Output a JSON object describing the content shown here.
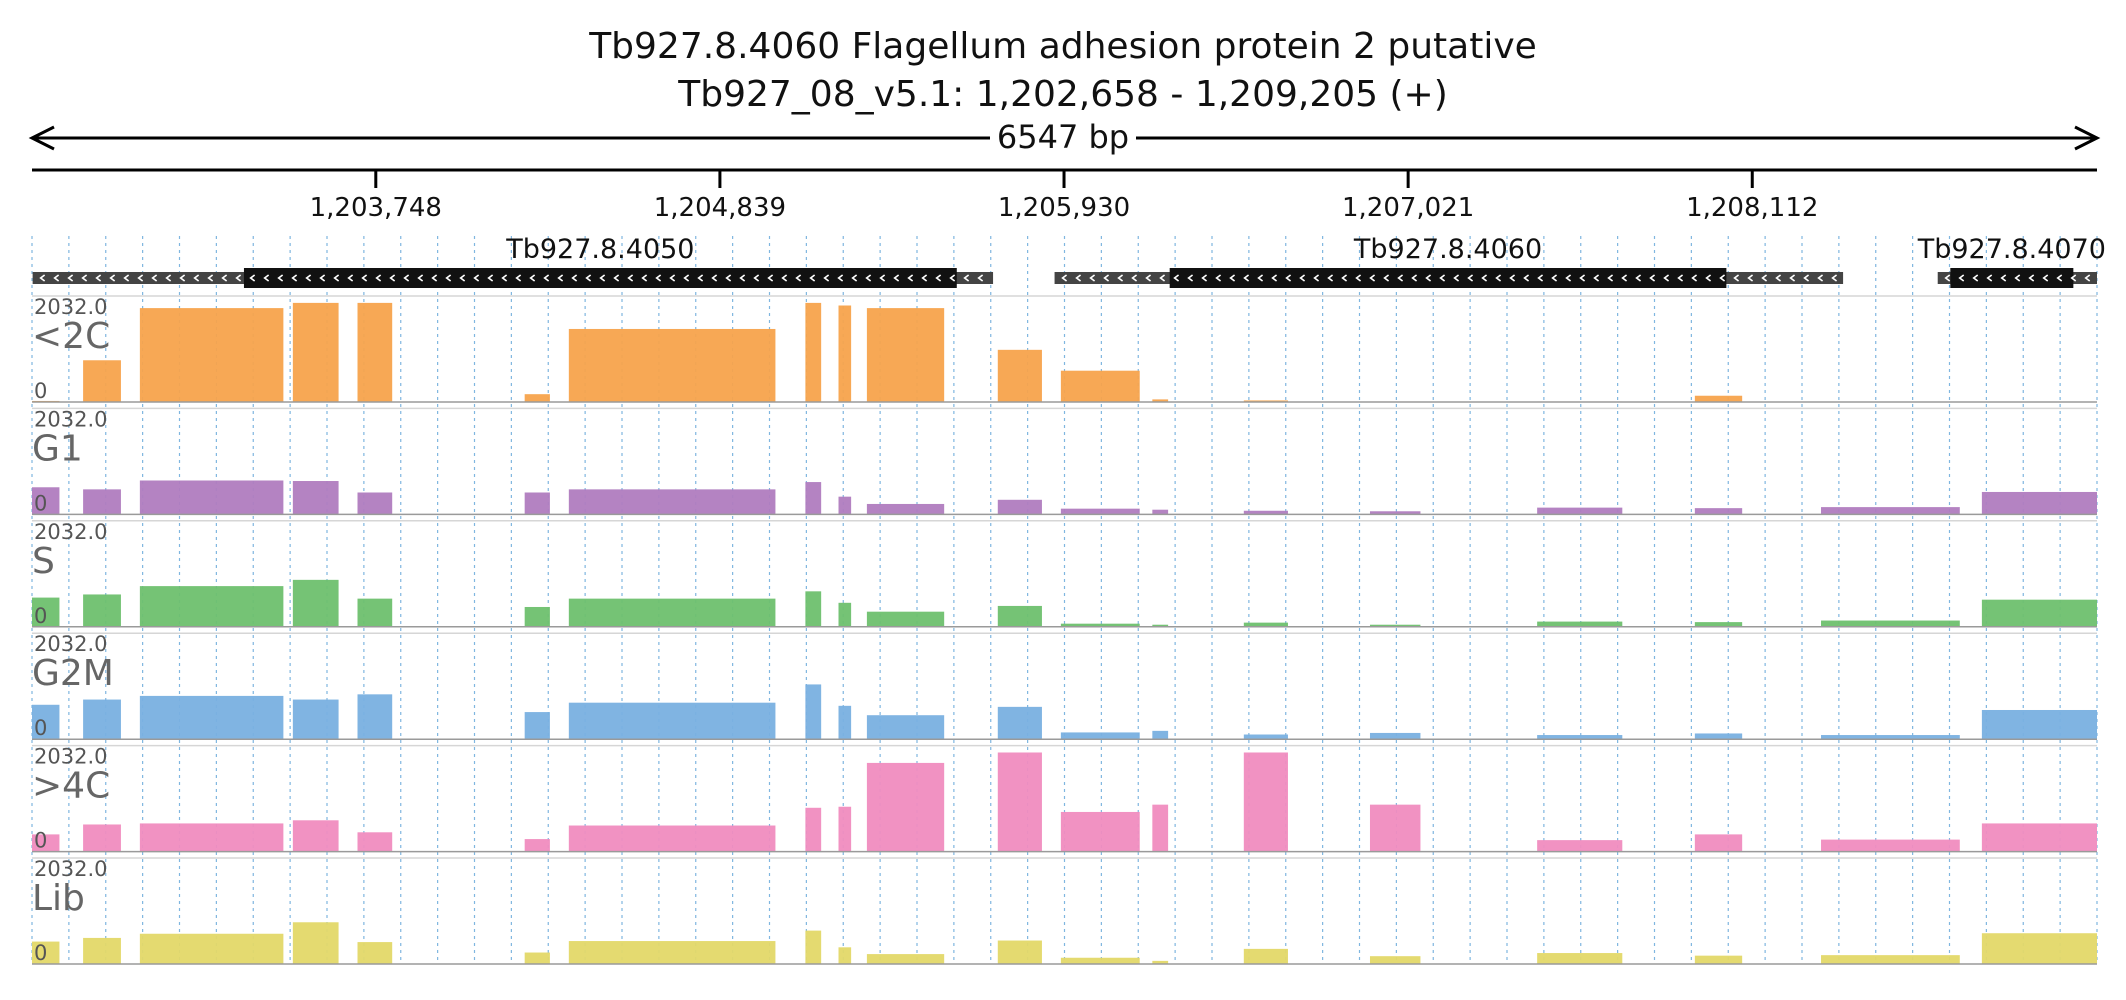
{
  "chart_data": {
    "type": "area",
    "title": "Tb927.8.4060  Flagellum adhesion protein 2  putative",
    "subtitle": "Tb927_08_v5.1: 1,202,658 - 1,209,205 (+)",
    "span_label": "6547 bp",
    "xlim": [
      1202658,
      1209205
    ],
    "ticks": [
      {
        "pos": 1203748,
        "label": "1,203,748"
      },
      {
        "pos": 1204839,
        "label": "1,204,839"
      },
      {
        "pos": 1205930,
        "label": "1,205,930"
      },
      {
        "pos": 1207021,
        "label": "1,207,021"
      },
      {
        "pos": 1208112,
        "label": "1,208,112"
      }
    ],
    "genes": [
      {
        "name": "Tb927.8.4050",
        "start": 1202660,
        "end": 1205705,
        "cds_start": 1203330,
        "cds_end": 1205590,
        "strand": "-"
      },
      {
        "name": "Tb927.8.4060",
        "start": 1205900,
        "end": 1208400,
        "cds_start": 1206265,
        "cds_end": 1208030,
        "strand": "-"
      },
      {
        "name": "Tb927.8.4070",
        "start": 1208700,
        "end": 1209205,
        "cds_start": 1208740,
        "cds_end": 1209130,
        "strand": "-"
      }
    ],
    "ylim": [
      0,
      2032.0
    ],
    "scale_max_label": "2032.0",
    "scale_min_label": "0",
    "segments": [
      [
        1202658,
        1202745
      ],
      [
        1202745,
        1202820
      ],
      [
        1202820,
        1202940
      ],
      [
        1202940,
        1203000
      ],
      [
        1203000,
        1203455
      ],
      [
        1203455,
        1203485
      ],
      [
        1203485,
        1203630
      ],
      [
        1203630,
        1203690
      ],
      [
        1203690,
        1203800
      ],
      [
        1203800,
        1204220
      ],
      [
        1204220,
        1204300
      ],
      [
        1204300,
        1204360
      ],
      [
        1204360,
        1205015
      ],
      [
        1205015,
        1205110
      ],
      [
        1205110,
        1205160
      ],
      [
        1205160,
        1205215
      ],
      [
        1205215,
        1205255
      ],
      [
        1205255,
        1205305
      ],
      [
        1205305,
        1205550
      ],
      [
        1205550,
        1205720
      ],
      [
        1205720,
        1205860
      ],
      [
        1205860,
        1205920
      ],
      [
        1205920,
        1206170
      ],
      [
        1206170,
        1206210
      ],
      [
        1206210,
        1206260
      ],
      [
        1206260,
        1206500
      ],
      [
        1206500,
        1206640
      ],
      [
        1206640,
        1206900
      ],
      [
        1206900,
        1207060
      ],
      [
        1207060,
        1207430
      ],
      [
        1207430,
        1207700
      ],
      [
        1207700,
        1207930
      ],
      [
        1207930,
        1208080
      ],
      [
        1208080,
        1208330
      ],
      [
        1208330,
        1208770
      ],
      [
        1208770,
        1208840
      ],
      [
        1208840,
        1209205
      ]
    ],
    "series": [
      {
        "name": "<2C",
        "color": "#f7a34c",
        "levels": [
          20,
          0,
          800,
          0,
          1800,
          0,
          1900,
          0,
          1900,
          0,
          150,
          0,
          1400,
          0,
          1900,
          0,
          1850,
          0,
          1800,
          0,
          1000,
          0,
          600,
          0,
          50,
          0,
          30,
          0,
          10,
          0,
          10,
          0,
          120,
          0,
          0,
          0,
          0
        ]
      },
      {
        "name": "G1",
        "color": "#b07cbf",
        "levels": [
          520,
          0,
          480,
          0,
          650,
          0,
          640,
          0,
          420,
          0,
          420,
          0,
          480,
          0,
          620,
          0,
          340,
          0,
          200,
          0,
          280,
          0,
          110,
          0,
          90,
          0,
          70,
          0,
          60,
          0,
          130,
          0,
          120,
          0,
          140,
          0,
          430
        ]
      },
      {
        "name": "S",
        "color": "#6ec06e",
        "levels": [
          560,
          0,
          620,
          0,
          780,
          0,
          900,
          0,
          540,
          0,
          380,
          0,
          540,
          0,
          680,
          0,
          460,
          0,
          290,
          0,
          400,
          0,
          60,
          0,
          40,
          0,
          80,
          0,
          40,
          0,
          100,
          0,
          90,
          0,
          120,
          0,
          520
        ]
      },
      {
        "name": "G2M",
        "color": "#79b0e0",
        "levels": [
          660,
          0,
          760,
          0,
          830,
          0,
          760,
          0,
          860,
          0,
          520,
          0,
          700,
          0,
          1050,
          0,
          640,
          0,
          460,
          0,
          620,
          0,
          130,
          0,
          160,
          0,
          90,
          0,
          120,
          0,
          80,
          0,
          110,
          0,
          80,
          0,
          560
        ]
      },
      {
        "name": ">4C",
        "color": "#f08cbf",
        "levels": [
          330,
          0,
          520,
          0,
          540,
          0,
          600,
          0,
          370,
          0,
          240,
          0,
          500,
          0,
          840,
          0,
          860,
          0,
          1700,
          0,
          1900,
          0,
          760,
          0,
          900,
          0,
          1900,
          0,
          900,
          0,
          220,
          0,
          330,
          0,
          230,
          0,
          540
        ]
      },
      {
        "name": "Lib",
        "color": "#e3d868",
        "levels": [
          430,
          0,
          500,
          0,
          580,
          0,
          800,
          0,
          420,
          0,
          220,
          0,
          440,
          0,
          640,
          0,
          320,
          0,
          190,
          0,
          450,
          0,
          120,
          0,
          60,
          0,
          290,
          0,
          150,
          0,
          210,
          0,
          160,
          0,
          170,
          0,
          590
        ]
      }
    ]
  }
}
